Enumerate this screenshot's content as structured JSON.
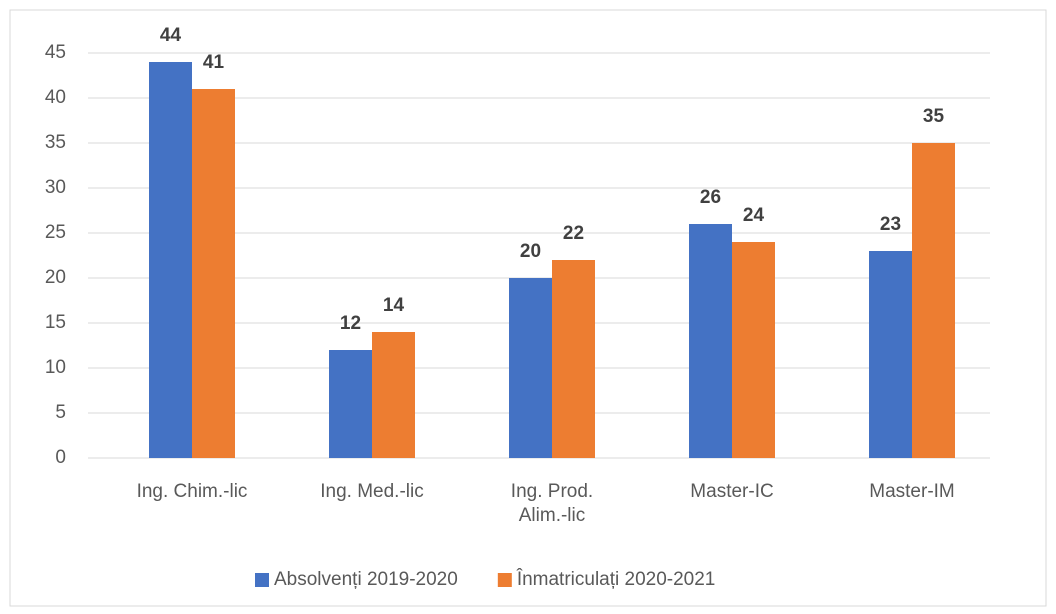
{
  "chart_data": {
    "type": "bar",
    "categories": [
      "Ing. Chim.-lic",
      "Ing. Med.-lic",
      "Ing. Prod. Alim.-lic",
      "Master-IC",
      "Master-IM"
    ],
    "series": [
      {
        "name": "Absolvenți 2019-2020",
        "color": "#4472c4",
        "values": [
          44,
          12,
          20,
          26,
          23
        ]
      },
      {
        "name": "Înmatriculați 2020-2021",
        "color": "#ed7d31",
        "values": [
          41,
          14,
          22,
          24,
          35
        ]
      }
    ],
    "ylim": [
      0,
      45
    ],
    "yticks": [
      0,
      5,
      10,
      15,
      20,
      25,
      30,
      35,
      40,
      45
    ],
    "grid": true,
    "legend": "bottom"
  }
}
